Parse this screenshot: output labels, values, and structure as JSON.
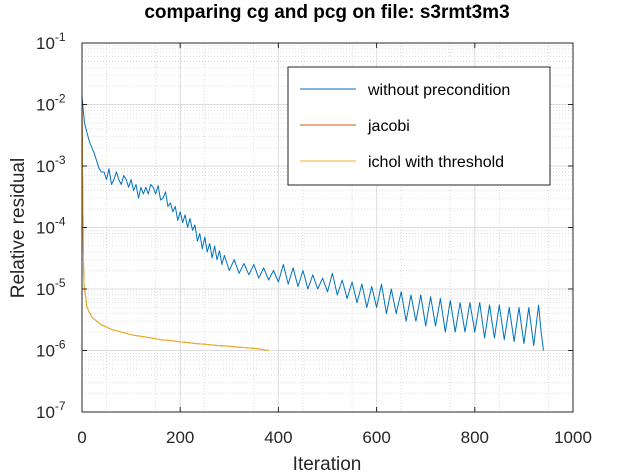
{
  "chart_data": {
    "type": "line",
    "title": "comparing cg and pcg on file: s3rmt3m3",
    "xlabel": "Iteration",
    "ylabel": "Relative residual",
    "xlim": [
      0,
      1000
    ],
    "ylim": [
      1e-07,
      0.1
    ],
    "yscale": "log",
    "grid": true,
    "minor_grid": true,
    "legend_position": "top-right",
    "x_ticks": [
      "0",
      "200",
      "400",
      "600",
      "800",
      "1000"
    ],
    "y_ticks": [
      {
        "base": "10",
        "exp": "-1"
      },
      {
        "base": "10",
        "exp": "-2"
      },
      {
        "base": "10",
        "exp": "-3"
      },
      {
        "base": "10",
        "exp": "-4"
      },
      {
        "base": "10",
        "exp": "-5"
      },
      {
        "base": "10",
        "exp": "-6"
      },
      {
        "base": "10",
        "exp": "-7"
      }
    ],
    "series": [
      {
        "name": "without precondition",
        "color": "#0072BD",
        "x": [
          0,
          2,
          5,
          10,
          15,
          20,
          25,
          30,
          35,
          40,
          45,
          50,
          55,
          60,
          65,
          70,
          75,
          80,
          85,
          90,
          95,
          100,
          105,
          110,
          115,
          120,
          125,
          130,
          135,
          140,
          145,
          150,
          155,
          160,
          165,
          170,
          175,
          180,
          185,
          190,
          195,
          200,
          205,
          210,
          215,
          220,
          225,
          230,
          235,
          240,
          245,
          250,
          255,
          260,
          265,
          270,
          275,
          280,
          285,
          290,
          300,
          310,
          320,
          330,
          340,
          350,
          360,
          370,
          380,
          390,
          400,
          410,
          420,
          430,
          440,
          450,
          460,
          470,
          480,
          490,
          500,
          510,
          520,
          530,
          540,
          550,
          560,
          570,
          580,
          590,
          600,
          610,
          620,
          630,
          640,
          650,
          660,
          670,
          680,
          690,
          700,
          710,
          720,
          730,
          740,
          750,
          760,
          770,
          780,
          790,
          800,
          810,
          820,
          830,
          840,
          850,
          860,
          870,
          880,
          890,
          900,
          910,
          920,
          930,
          935,
          940
        ],
        "y": [
          0.014,
          0.009,
          0.005,
          0.0035,
          0.0025,
          0.002,
          0.0016,
          0.0012,
          0.0009,
          0.0008,
          0.0008,
          0.0006,
          0.0009,
          0.0005,
          0.0006,
          0.0008,
          0.0006,
          0.0005,
          0.0007,
          0.0006,
          0.00045,
          0.0006,
          0.0004,
          0.0005,
          0.0003,
          0.00045,
          0.00035,
          0.00045,
          0.00035,
          0.0005,
          0.00045,
          0.00035,
          0.00048,
          0.00028,
          0.0003,
          0.00038,
          0.00022,
          0.00025,
          0.00018,
          0.00022,
          0.00013,
          0.00018,
          0.00012,
          0.00016,
          0.0001,
          0.00014,
          9e-05,
          0.00011,
          6e-05,
          8e-05,
          4.5e-05,
          7e-05,
          4e-05,
          5.5e-05,
          3.2e-05,
          5e-05,
          3e-05,
          4.2e-05,
          2.5e-05,
          3.5e-05,
          2e-05,
          3e-05,
          1.8e-05,
          2.6e-05,
          1.7e-05,
          2.5e-05,
          1.5e-05,
          2.2e-05,
          1.4e-05,
          2e-05,
          1.3e-05,
          2.5e-05,
          1.2e-05,
          2.2e-05,
          1.1e-05,
          2e-05,
          1e-05,
          1.7e-05,
          1e-05,
          1.5e-05,
          9e-06,
          1.8e-05,
          8e-06,
          1.4e-05,
          7e-06,
          1.3e-05,
          6e-06,
          1.2e-05,
          5e-06,
          1.1e-05,
          5e-06,
          1.2e-05,
          4e-06,
          1e-05,
          4e-06,
          9e-06,
          3e-06,
          8e-06,
          3e-06,
          8e-06,
          2.5e-06,
          7.5e-06,
          2.5e-06,
          7e-06,
          2e-06,
          6.5e-06,
          2e-06,
          6e-06,
          2e-06,
          6e-06,
          2e-06,
          6e-06,
          1.6e-06,
          5.5e-06,
          1.6e-06,
          5.5e-06,
          1.5e-06,
          5e-06,
          1.4e-06,
          5e-06,
          1.3e-06,
          5e-06,
          1.2e-06,
          5.5e-06,
          2e-06,
          1e-06
        ]
      },
      {
        "name": "jacobi",
        "color": "#D95319",
        "x": [
          0,
          1,
          2,
          3,
          4,
          6,
          8,
          10,
          15,
          20,
          30,
          40,
          50,
          60,
          70,
          80,
          90,
          100,
          110,
          120,
          130,
          140,
          150,
          160,
          170,
          180,
          190,
          200,
          210,
          220,
          230,
          240,
          250,
          260,
          270,
          280,
          290,
          300,
          310,
          320,
          330,
          340,
          350,
          360,
          370,
          380
        ],
        "y": [
          0.012,
          0.001,
          0.0002,
          3e-05,
          1.2e-05,
          9e-06,
          7e-06,
          5e-06,
          4.2e-06,
          3.5e-06,
          3e-06,
          2.6e-06,
          2.4e-06,
          2.2e-06,
          2.1e-06,
          2e-06,
          1.9e-06,
          1.8e-06,
          1.75e-06,
          1.7e-06,
          1.65e-06,
          1.6e-06,
          1.55e-06,
          1.5e-06,
          1.48e-06,
          1.45e-06,
          1.42e-06,
          1.38e-06,
          1.36e-06,
          1.33e-06,
          1.3e-06,
          1.28e-06,
          1.26e-06,
          1.24e-06,
          1.22e-06,
          1.2e-06,
          1.19e-06,
          1.17e-06,
          1.15e-06,
          1.13e-06,
          1.12e-06,
          1.1e-06,
          1.08e-06,
          1.06e-06,
          1.03e-06,
          1e-06
        ]
      },
      {
        "name": "ichol with threshold",
        "color": "#EDB120",
        "x": [
          0,
          1,
          2,
          3,
          4,
          6,
          8,
          10,
          15,
          20,
          30,
          40,
          50,
          60,
          70,
          80,
          90,
          100,
          110,
          120,
          130,
          140,
          150,
          160,
          170,
          180,
          190,
          200,
          210,
          220,
          230,
          240,
          250,
          260,
          270,
          280,
          290,
          300,
          310,
          320,
          330,
          340,
          350,
          360,
          370,
          380
        ],
        "y": [
          0.012,
          0.001,
          0.0002,
          3e-05,
          1.2e-05,
          9e-06,
          7e-06,
          5e-06,
          4.2e-06,
          3.5e-06,
          3e-06,
          2.6e-06,
          2.4e-06,
          2.2e-06,
          2.1e-06,
          2e-06,
          1.9e-06,
          1.8e-06,
          1.75e-06,
          1.7e-06,
          1.65e-06,
          1.6e-06,
          1.55e-06,
          1.5e-06,
          1.48e-06,
          1.45e-06,
          1.42e-06,
          1.38e-06,
          1.36e-06,
          1.33e-06,
          1.3e-06,
          1.28e-06,
          1.26e-06,
          1.24e-06,
          1.22e-06,
          1.2e-06,
          1.19e-06,
          1.17e-06,
          1.15e-06,
          1.13e-06,
          1.12e-06,
          1.1e-06,
          1.08e-06,
          1.06e-06,
          1.03e-06,
          1e-06
        ]
      }
    ]
  }
}
